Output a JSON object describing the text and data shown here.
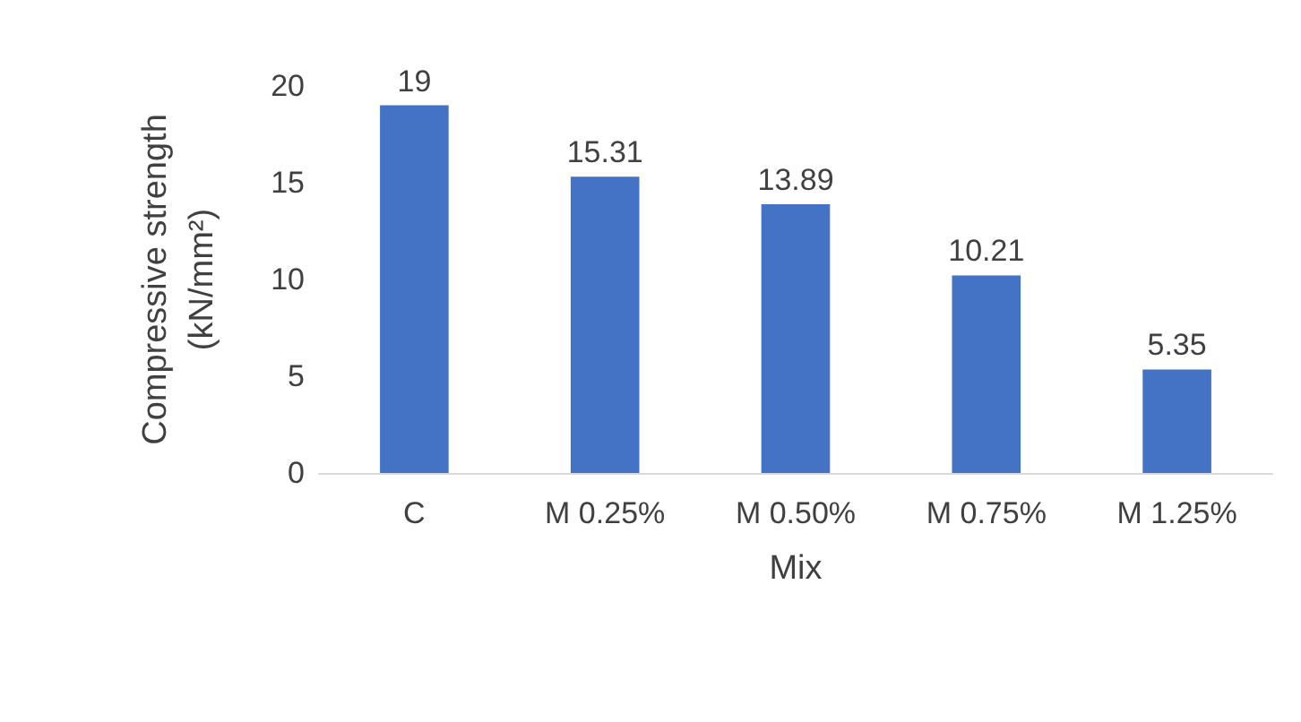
{
  "chart_data": {
    "type": "bar",
    "xlabel": "Mix",
    "ylabel": "Compressive strength (kN/mm²)",
    "categories": [
      "C",
      "M 0.25%",
      "M 0.50%",
      "M 0.75%",
      "M 1.25%"
    ],
    "values": [
      19,
      15.31,
      13.89,
      10.21,
      5.35
    ],
    "color": "#4472c4",
    "ylim": [
      0,
      20
    ],
    "yticks": [
      0,
      5,
      10,
      15,
      20
    ],
    "grid": false,
    "data_labels": true
  }
}
